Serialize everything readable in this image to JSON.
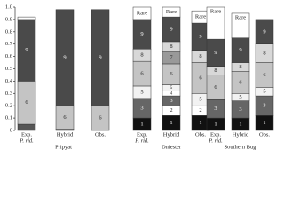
{
  "chart_data": {
    "type": "stacked_bar",
    "ylim": [
      0,
      1
    ],
    "yticks": [
      0,
      0.1,
      0.2,
      0.3,
      0.4,
      0.5,
      0.6,
      0.7,
      0.8,
      0.9,
      {
        "value": 1,
        "label": "1.0"
      }
    ],
    "groups": [
      {
        "name": "Pripyat",
        "bars": [
          {
            "label": [
              "Exp.",
              "P. rid."
            ],
            "segments": [
              {
                "value": 0.05,
                "color": "#555"
              },
              {
                "label": "6",
                "value": 0.35,
                "color": "#c4c4c4"
              },
              {
                "label": "9",
                "value": 0.5,
                "color": "#4a4a4a"
              },
              {
                "value": 0.02,
                "color": "#fff"
              }
            ]
          },
          {
            "label": [
              "Hybrid"
            ],
            "segments": [
              {
                "value": 0.01,
                "color": "#555"
              },
              {
                "label": "6",
                "value": 0.19,
                "color": "#c4c4c4"
              },
              {
                "label": "9",
                "value": 0.78,
                "color": "#4a4a4a"
              }
            ]
          },
          {
            "label": [
              "Obs."
            ],
            "segments": [
              {
                "label": "6",
                "value": 0.2,
                "color": "#c4c4c4"
              },
              {
                "label": "9",
                "value": 0.78,
                "color": "#4a4a4a"
              }
            ]
          }
        ]
      },
      {
        "name": "Dniester",
        "bars": [
          {
            "label": [
              "Exp.",
              "P. rid."
            ],
            "segments": [
              {
                "label": "1",
                "value": 0.1,
                "color": "#111"
              },
              {
                "label": "3",
                "value": 0.16,
                "color": "#666"
              },
              {
                "label": "5",
                "value": 0.1,
                "color": "#f2f2f2"
              },
              {
                "label": "6",
                "value": 0.2,
                "color": "#c4c4c4"
              },
              {
                "label": "8",
                "value": 0.1,
                "color": "#d8d8d8"
              },
              {
                "label": "9",
                "value": 0.24,
                "color": "#4a4a4a"
              },
              {
                "label": "Rare",
                "value": 0.1,
                "color": "#fff"
              }
            ]
          },
          {
            "label": [
              "Hybrid"
            ],
            "segments": [
              {
                "label": "1",
                "value": 0.12,
                "color": "#111"
              },
              {
                "label": "2",
                "value": 0.08,
                "color": "#fff"
              },
              {
                "label": "3",
                "value": 0.08,
                "color": "#666"
              },
              {
                "label": "4",
                "value": 0.04,
                "color": "#fff"
              },
              {
                "label": "5",
                "value": 0.05,
                "color": "#f2f2f2"
              },
              {
                "label": "6",
                "value": 0.17,
                "color": "#c4c4c4"
              },
              {
                "label": "7",
                "value": 0.1,
                "color": "#999"
              },
              {
                "label": "8",
                "value": 0.08,
                "color": "#d8d8d8"
              },
              {
                "label": "9",
                "value": 0.2,
                "color": "#4a4a4a"
              },
              {
                "label": "Rare",
                "value": 0.08,
                "color": "#fff"
              }
            ]
          },
          {
            "label": [
              "Obs."
            ],
            "segments": [
              {
                "label": "1",
                "value": 0.12,
                "color": "#111"
              },
              {
                "label": "2",
                "value": 0.08,
                "color": "#fff"
              },
              {
                "label": "5",
                "value": 0.1,
                "color": "#f2f2f2"
              },
              {
                "label": "6",
                "value": 0.25,
                "color": "#c4c4c4"
              },
              {
                "label": "8",
                "value": 0.1,
                "color": "#d8d8d8"
              },
              {
                "label": "9",
                "value": 0.22,
                "color": "#4a4a4a"
              },
              {
                "label": "Rare",
                "value": 0.1,
                "color": "#fff"
              }
            ]
          }
        ]
      },
      {
        "name": "Southern Bug",
        "bars": [
          {
            "label": [
              "Exp.",
              "P. rid."
            ],
            "segments": [
              {
                "label": "1",
                "value": 0.1,
                "color": "#111"
              },
              {
                "label": "3",
                "value": 0.15,
                "color": "#666"
              },
              {
                "label": "6",
                "value": 0.2,
                "color": "#c4c4c4"
              },
              {
                "label": "8",
                "value": 0.07,
                "color": "#d8d8d8"
              },
              {
                "label": "9",
                "value": 0.22,
                "color": "#4a4a4a"
              },
              {
                "label": "Rare",
                "value": 0.26,
                "color": "#fff"
              }
            ]
          },
          {
            "label": [
              "Hybrid"
            ],
            "segments": [
              {
                "label": "1",
                "value": 0.1,
                "color": "#111"
              },
              {
                "label": "3",
                "value": 0.14,
                "color": "#666"
              },
              {
                "label": "5",
                "value": 0.06,
                "color": "#f2f2f2"
              },
              {
                "label": "6",
                "value": 0.18,
                "color": "#c4c4c4"
              },
              {
                "label": "8",
                "value": 0.07,
                "color": "#d8d8d8"
              },
              {
                "label": "9",
                "value": 0.2,
                "color": "#4a4a4a"
              },
              {
                "label": "Rare",
                "value": 0.2,
                "color": "#fff"
              }
            ]
          },
          {
            "label": [
              "Obs."
            ],
            "segments": [
              {
                "label": "1",
                "value": 0.12,
                "color": "#111"
              },
              {
                "label": "3",
                "value": 0.16,
                "color": "#666"
              },
              {
                "label": "5",
                "value": 0.07,
                "color": "#f2f2f2"
              },
              {
                "label": "6",
                "value": 0.2,
                "color": "#c4c4c4"
              },
              {
                "label": "8",
                "value": 0.15,
                "color": "#d8d8d8"
              },
              {
                "label": "9",
                "value": 0.2,
                "color": "#4a4a4a"
              }
            ]
          }
        ]
      }
    ]
  }
}
